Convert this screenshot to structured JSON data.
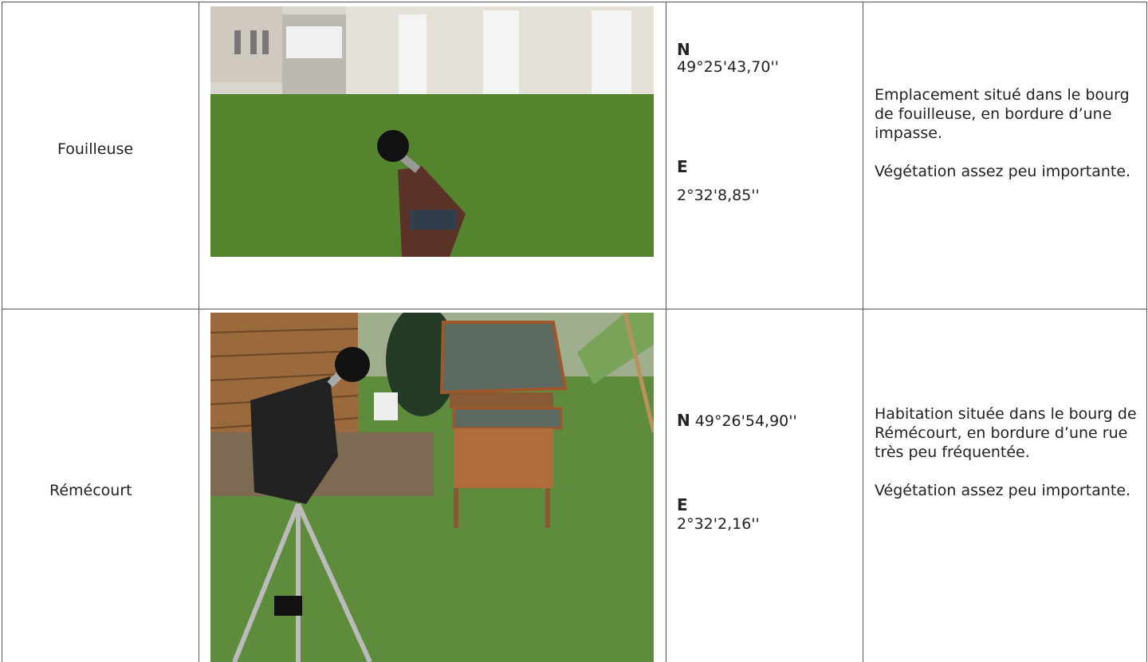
{
  "table": {
    "rows": [
      {
        "place": "Fouilleuse",
        "coords": {
          "n_label": "N",
          "n": "49°25'43,70''",
          "e_label": "E",
          "e": "2°32'8,85''"
        },
        "description": [
          "Emplacement situé dans le bourg de fouilleuse, en bordure d’une impasse.",
          "Végétation assez peu importante."
        ]
      },
      {
        "place": "Rémécourt",
        "coords": {
          "n_label": "N",
          "n": "49°26'54,90''",
          "e_label": "E",
          "e": "2°32'2,16''"
        },
        "description": [
          "Habitation située dans le bourg de Rémécourt, en bordure d’une rue très peu fréquentée.",
          "Végétation assez peu importante."
        ]
      }
    ]
  }
}
